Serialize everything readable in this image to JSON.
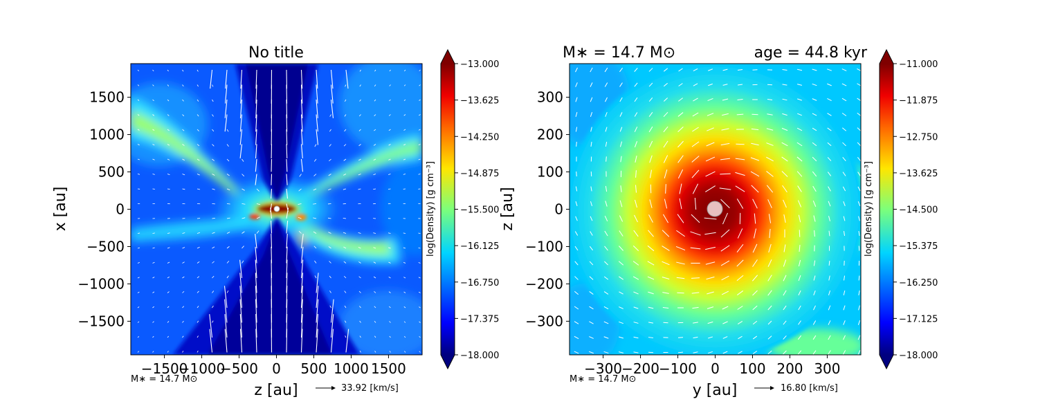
{
  "chart_data": [
    {
      "type": "heatmap",
      "title": "No title",
      "xlabel": "z [au]",
      "ylabel": "x [au]",
      "xlim": [
        -1950,
        1950
      ],
      "ylim": [
        -1950,
        1950
      ],
      "x_ticks": [
        "−1500",
        "−1000",
        "−500",
        "0",
        "500",
        "1000",
        "1500"
      ],
      "x_tick_values": [
        -1500,
        -1000,
        -500,
        0,
        500,
        1000,
        1500
      ],
      "y_ticks": [
        "1500",
        "1000",
        "500",
        "0",
        "−500",
        "−1000",
        "−1500"
      ],
      "y_tick_values": [
        1500,
        1000,
        500,
        0,
        -500,
        -1000,
        -1500
      ],
      "colorbar": {
        "label": "log(Density) [g cm⁻³]",
        "min": -18.0,
        "max": -13.0,
        "ticks": [
          "−13.000",
          "−13.625",
          "−14.250",
          "−14.875",
          "−15.500",
          "−16.125",
          "−16.750",
          "−17.375",
          "−18.000"
        ],
        "tick_values": [
          -13.0,
          -13.625,
          -14.25,
          -14.875,
          -15.5,
          -16.125,
          -16.75,
          -17.375,
          -18.0
        ],
        "colormap": "jet"
      },
      "star_mass_note": "M∗ = 14.7 M⊙",
      "velocity_key": "33.92 [km/s]",
      "velocity_key_value": 33.92
    },
    {
      "type": "heatmap",
      "title_left": "M∗ = 14.7 M⊙",
      "title_right": "age = 44.8 kyr",
      "xlabel": "y [au]",
      "ylabel": "z [au]",
      "xlim": [
        -390,
        390
      ],
      "ylim": [
        -390,
        390
      ],
      "x_ticks": [
        "−300",
        "−200",
        "−100",
        "0",
        "100",
        "200",
        "300"
      ],
      "x_tick_values": [
        -300,
        -200,
        -100,
        0,
        100,
        200,
        300
      ],
      "y_ticks": [
        "300",
        "200",
        "100",
        "0",
        "−100",
        "−200",
        "−300"
      ],
      "y_tick_values": [
        300,
        200,
        100,
        0,
        -100,
        -200,
        -300
      ],
      "colorbar": {
        "label": "log(Density) [g cm⁻³]",
        "min": -18.0,
        "max": -11.0,
        "ticks": [
          "−11.000",
          "−11.875",
          "−12.750",
          "−13.625",
          "−14.500",
          "−15.375",
          "−16.250",
          "−17.125",
          "−18.000"
        ],
        "tick_values": [
          -11.0,
          -11.875,
          -12.75,
          -13.625,
          -14.5,
          -15.375,
          -16.25,
          -17.125,
          -18.0
        ],
        "colormap": "jet"
      },
      "star_mass_note": "M∗ = 14.7 M⊙",
      "velocity_key": "16.80 [km/s]",
      "velocity_key_value": 16.8
    }
  ]
}
